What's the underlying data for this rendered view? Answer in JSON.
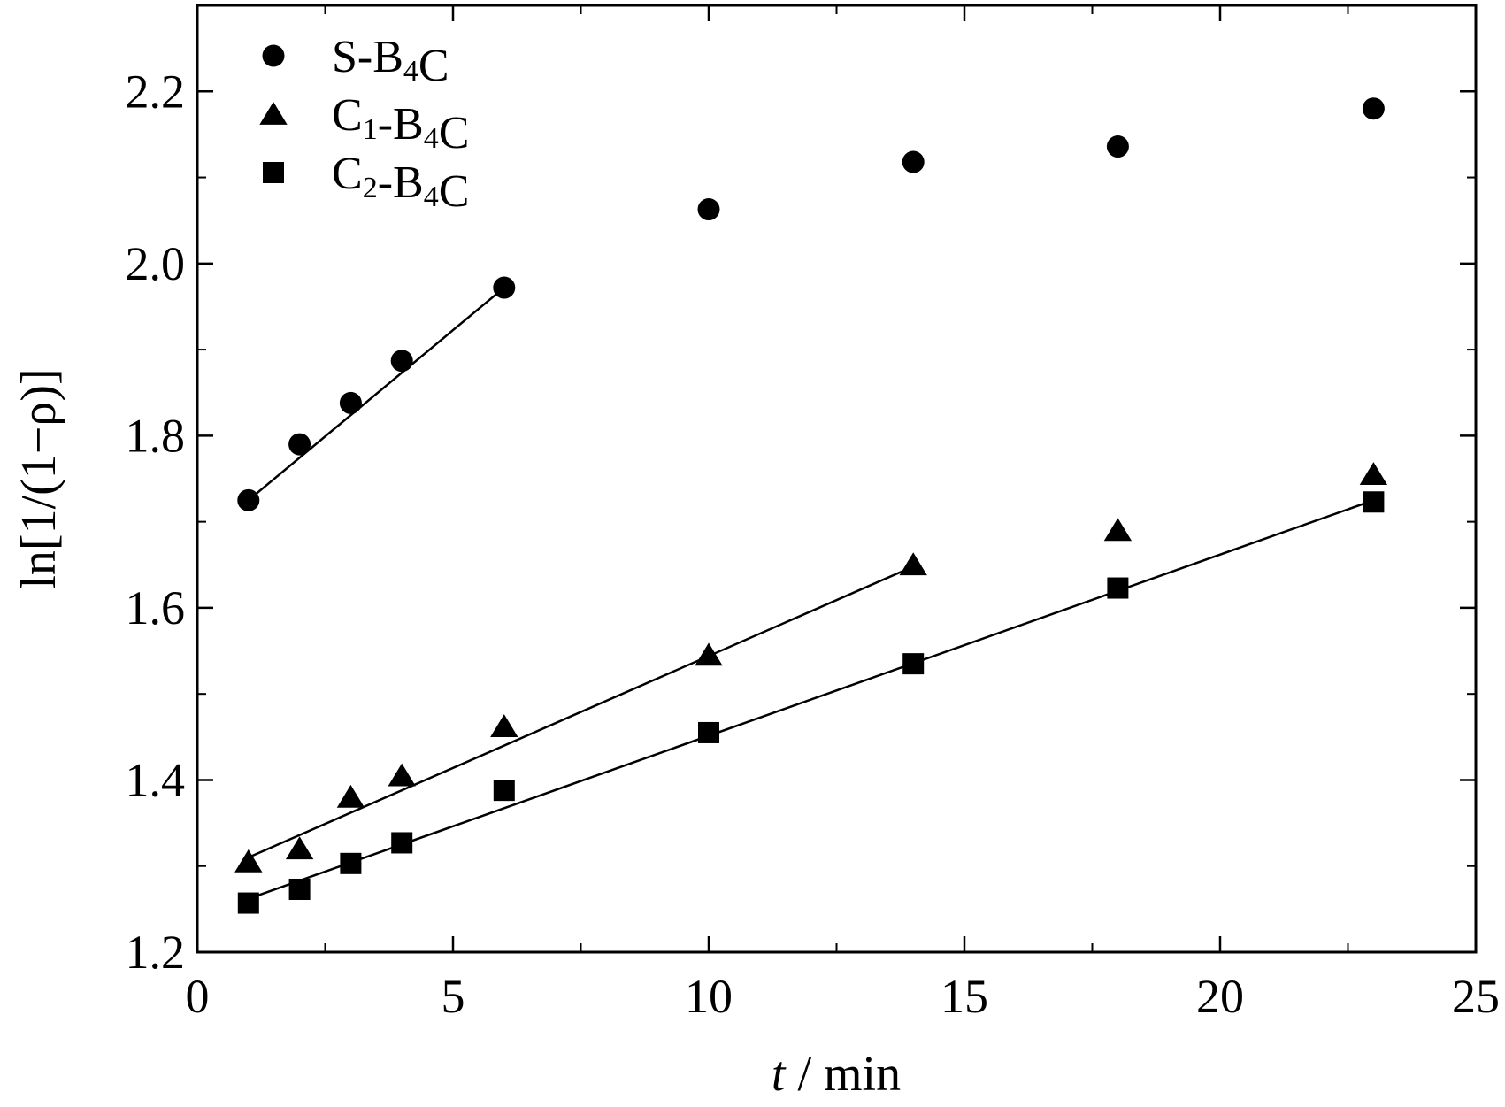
{
  "chart_data": {
    "type": "scatter",
    "xlabel": {
      "italic": "t",
      "rest": " / min"
    },
    "ylabel": "ln[1/(1−ρ)]",
    "xlim": [
      0,
      25
    ],
    "ylim": [
      1.2,
      2.3
    ],
    "xticks": [
      0,
      5,
      10,
      15,
      20,
      25
    ],
    "xtick_labels": [
      "0",
      "5",
      "10",
      "15",
      "20",
      "25"
    ],
    "yticks": [
      1.2,
      1.4,
      1.6,
      1.8,
      2.0,
      2.2
    ],
    "ytick_labels": [
      "1.2",
      "1.4",
      "1.6",
      "1.8",
      "2.0",
      "2.2"
    ],
    "grid": false,
    "legend_position": "top-left",
    "series": [
      {
        "name": "S-B4C",
        "legend": {
          "pre": "S-B",
          "sub": "4",
          "post": "C"
        },
        "marker": "circle",
        "x": [
          1,
          2,
          3,
          4,
          6,
          10,
          14,
          18,
          23
        ],
        "y": [
          1.725,
          1.79,
          1.838,
          1.887,
          1.972,
          2.063,
          2.118,
          2.136,
          2.18
        ],
        "fit": {
          "x": [
            1,
            6
          ],
          "y": [
            1.725,
            1.972
          ]
        }
      },
      {
        "name": "C1-B4C",
        "legend": {
          "pre": "C",
          "sub1": "1",
          "mid": "-B",
          "sub": "4",
          "post": "C"
        },
        "marker": "triangle",
        "x": [
          1,
          2,
          3,
          4,
          6,
          10,
          14,
          18,
          23
        ],
        "y": [
          1.305,
          1.32,
          1.38,
          1.405,
          1.462,
          1.545,
          1.65,
          1.69,
          1.755
        ],
        "fit": {
          "x": [
            1,
            14
          ],
          "y": [
            1.31,
            1.648
          ]
        }
      },
      {
        "name": "C2-B4C",
        "legend": {
          "pre": "C",
          "sub1": "2",
          "mid": "-B",
          "sub": "4",
          "post": "C"
        },
        "marker": "square",
        "x": [
          1,
          2,
          3,
          4,
          6,
          10,
          14,
          18,
          23
        ],
        "y": [
          1.257,
          1.273,
          1.303,
          1.327,
          1.388,
          1.455,
          1.535,
          1.623,
          1.723
        ],
        "fit": {
          "x": [
            1,
            23
          ],
          "y": [
            1.262,
            1.725
          ]
        }
      }
    ],
    "colors": {
      "marks": "#000000",
      "background": "#ffffff"
    }
  }
}
